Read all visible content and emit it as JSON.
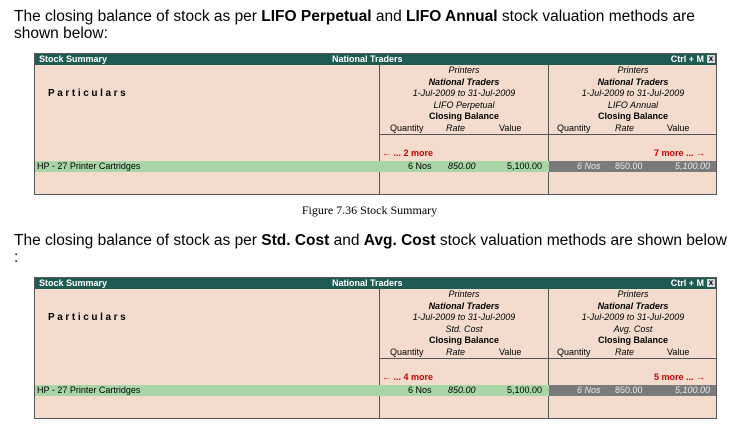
{
  "intro1": {
    "p1": "The closing balance of stock as per ",
    "b1": "LIFO Perpetual",
    "p2": " and ",
    "b2": "LIFO Annual",
    "p3": " stock valuation methods are shown below:"
  },
  "caption": "Figure 7.36  Stock Summary",
  "intro2": {
    "p1": "The closing balance of stock as per ",
    "b1": "Std. Cost",
    "p2": " and ",
    "b2": "Avg. Cost",
    "p3": " stock valuation methods are shown below :"
  },
  "panels": [
    {
      "title_left": "Stock Summary",
      "title_center": "National Traders",
      "title_right": "Ctrl + M",
      "close": "x",
      "particulars": "Particulars",
      "col1": {
        "group": "Printers",
        "company": "National Traders",
        "period": "1-Jul-2009 to 31-Jul-2009",
        "method": "LIFO Perpetual",
        "heading": "Closing Balance",
        "more": "... 2 more"
      },
      "col2": {
        "group": "Printers",
        "company": "National Traders",
        "period": "1-Jul-2009 to 31-Jul-2009",
        "method": "LIFO Annual",
        "heading": "Closing Balance",
        "more": "7 more ..."
      },
      "sub": {
        "qty": "Quantity",
        "rate": "Rate",
        "value": "Value"
      },
      "row": {
        "name": "HP - 27 Printer Cartridges",
        "c1": {
          "qty": "6 Nos",
          "rate": "850.00",
          "value": "5,100.00"
        },
        "c2": {
          "qty": "6 Nos",
          "rate": "850.00",
          "value": "5,100.00"
        }
      }
    },
    {
      "title_left": "Stock Summary",
      "title_center": "National Traders",
      "title_right": "Ctrl + M",
      "close": "x",
      "particulars": "Particulars",
      "col1": {
        "group": "Printers",
        "company": "National Traders",
        "period": "1-Jul-2009 to 31-Jul-2009",
        "method": "Std. Cost",
        "heading": "Closing Balance",
        "more": "... 4 more"
      },
      "col2": {
        "group": "Printers",
        "company": "National Traders",
        "period": "1-Jul-2009 to 31-Jul-2009",
        "method": "Avg. Cost",
        "heading": "Closing Balance",
        "more": "5 more ..."
      },
      "sub": {
        "qty": "Quantity",
        "rate": "Rate",
        "value": "Value"
      },
      "row": {
        "name": "HP - 27 Printer Cartridges",
        "c1": {
          "qty": "6 Nos",
          "rate": "850.00",
          "value": "5,100.00"
        },
        "c2": {
          "qty": "6 Nos",
          "rate": "850.00",
          "value": "5,100.00"
        }
      }
    }
  ]
}
